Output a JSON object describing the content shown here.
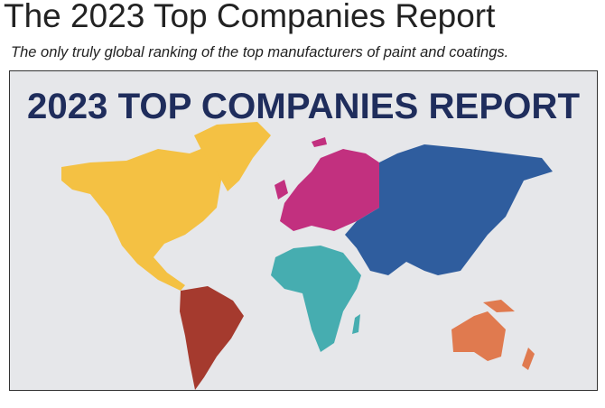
{
  "header": {
    "title": "The 2023 Top Companies Report",
    "subtitle": "The only truly global ranking of the top manufacturers of paint and coatings."
  },
  "image": {
    "heading": "2023 TOP COMPANIES REPORT"
  }
}
